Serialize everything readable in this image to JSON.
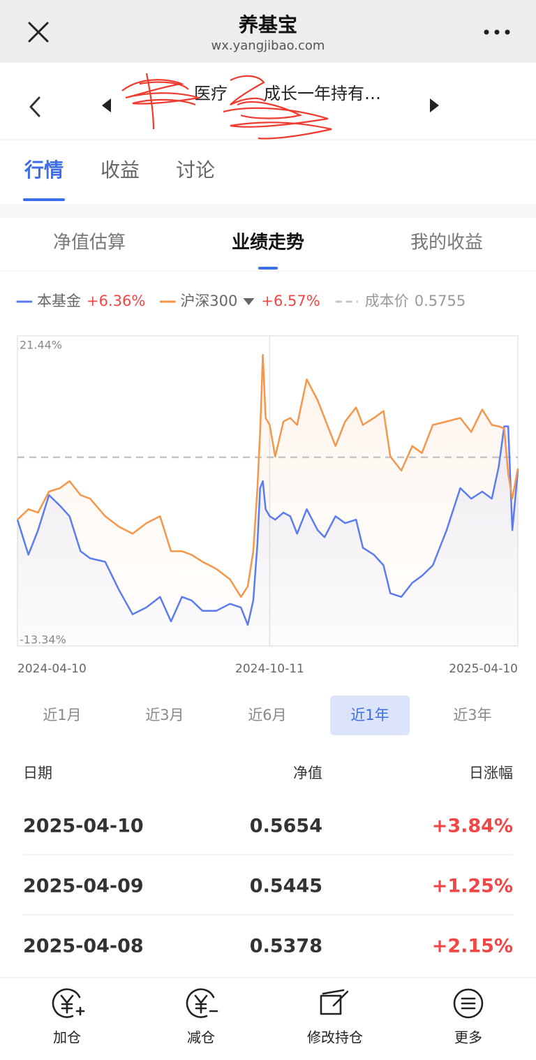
{
  "header": {
    "title": "养基宝",
    "url": "wx.yangjibao.com"
  },
  "fund": {
    "name_parts": [
      "医疗",
      "成长一年持有…"
    ]
  },
  "tabs": {
    "items": [
      "行情",
      "收益",
      "讨论"
    ],
    "active": 0
  },
  "subtabs": {
    "items": [
      "净值估算",
      "业绩走势",
      "我的收益"
    ],
    "active": 1
  },
  "chart_data": {
    "type": "line",
    "x": [
      "2024-04-10",
      "2024-04-18",
      "2024-04-25",
      "2024-05-03",
      "2024-05-11",
      "2024-05-18",
      "2024-05-26",
      "2024-06-02",
      "2024-06-13",
      "2024-06-23",
      "2024-07-03",
      "2024-07-13",
      "2024-07-23",
      "2024-07-31",
      "2024-08-08",
      "2024-08-15",
      "2024-08-23",
      "2024-09-02",
      "2024-09-12",
      "2024-09-20",
      "2024-09-25",
      "2024-09-29",
      "2024-10-02",
      "2024-10-04",
      "2024-10-06",
      "2024-10-08",
      "2024-10-11",
      "2024-10-15",
      "2024-10-21",
      "2024-10-26",
      "2024-10-31",
      "2024-11-07",
      "2024-11-15",
      "2024-11-20",
      "2024-11-28",
      "2024-12-05",
      "2024-12-13",
      "2024-12-18",
      "2024-12-26",
      "2025-01-02",
      "2025-01-07",
      "2025-01-15",
      "2025-01-23",
      "2025-01-30",
      "2025-02-07",
      "2025-02-17",
      "2025-02-27",
      "2025-03-07",
      "2025-03-15",
      "2025-03-22",
      "2025-03-27",
      "2025-03-31",
      "2025-04-03",
      "2025-04-06",
      "2025-04-10"
    ],
    "series": [
      {
        "name": "本基金",
        "color": "#5b7cf0",
        "legend_value_label": "+6.36%",
        "values": [
          0.82,
          -3.11,
          -0.36,
          3.58,
          2.39,
          1.21,
          -2.72,
          -3.51,
          -3.9,
          -7.05,
          -9.8,
          -9.02,
          -7.84,
          -10.59,
          -7.84,
          -8.23,
          -9.41,
          -9.41,
          -8.62,
          -9.02,
          -10.98,
          -8.23,
          -1.93,
          4.36,
          5.15,
          2.0,
          1.21,
          0.82,
          1.61,
          1.21,
          -0.75,
          2.0,
          -0.36,
          -1.15,
          1.21,
          0.43,
          0.82,
          -2.33,
          -3.11,
          -4.29,
          -7.44,
          -7.84,
          -6.26,
          -5.48,
          -4.29,
          -0.36,
          4.36,
          3.18,
          3.97,
          3.18,
          6.72,
          11.29,
          11.29,
          -0.36,
          6.36
        ]
      },
      {
        "name": "沪深300",
        "color": "#f5964a",
        "legend_value_label": "+6.57%",
        "values": [
          0.82,
          2.0,
          1.61,
          3.97,
          4.36,
          5.15,
          3.58,
          3.18,
          1.21,
          0.03,
          -0.75,
          0.43,
          1.21,
          -2.72,
          -2.72,
          -3.11,
          -3.9,
          -4.69,
          -5.87,
          -7.84,
          -6.66,
          -2.72,
          4.36,
          10.66,
          19.32,
          12.23,
          11.45,
          7.9,
          11.84,
          12.23,
          11.45,
          16.56,
          14.2,
          12.23,
          9.08,
          11.84,
          13.41,
          11.45,
          12.23,
          13.02,
          7.9,
          6.33,
          9.08,
          8.3,
          11.45,
          11.84,
          12.23,
          10.66,
          13.18,
          11.45,
          11.29,
          11.05,
          5.94,
          3.18,
          6.57
        ]
      }
    ],
    "cost_line": {
      "name": "成本价",
      "label": "0.5755",
      "value": 7.82,
      "color": "#c4c4c4"
    },
    "ylim": [
      -13.34,
      21.44
    ],
    "yticks": [
      {
        "value": 21.44,
        "label": "21.44%"
      },
      {
        "value": -13.34,
        "label": "-13.34%"
      }
    ],
    "xlim": [
      "2024-04-10",
      "2025-04-10"
    ],
    "xticks": [
      "2024-04-10",
      "2024-10-11",
      "2025-04-10"
    ],
    "value_label_color": "#f04646"
  },
  "ranges": {
    "items": [
      "近1月",
      "近3月",
      "近6月",
      "近1年",
      "近3年"
    ],
    "active": 3
  },
  "table": {
    "header": [
      "日期",
      "净值",
      "日涨幅"
    ],
    "rows": [
      [
        "2025-04-10",
        "0.5654",
        "+3.84%"
      ],
      [
        "2025-04-09",
        "0.5445",
        "+1.25%"
      ],
      [
        "2025-04-08",
        "0.5378",
        "+2.15%"
      ]
    ]
  },
  "bottom_nav": [
    "加仓",
    "减仓",
    "修改持仓",
    "更多"
  ]
}
